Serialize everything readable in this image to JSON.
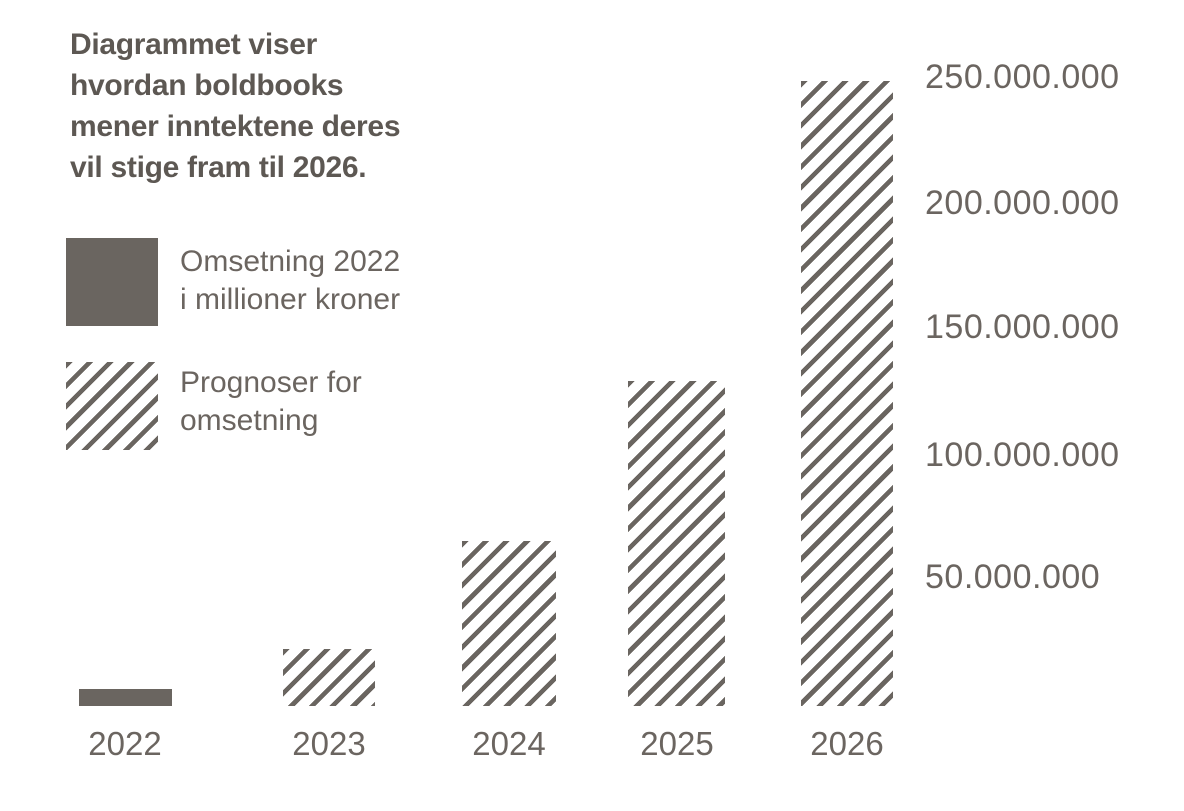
{
  "title": {
    "lines": [
      "Diagrammet viser",
      "hvordan boldbooks",
      "mener inntektene deres",
      "vil stige fram til 2026."
    ]
  },
  "legend": {
    "items": [
      {
        "swatch": "solid-square",
        "lines": [
          "Omsetning 2022",
          "i millioner kroner"
        ]
      },
      {
        "swatch": "hatched-square",
        "lines": [
          "Prognoser for",
          "omsetning"
        ]
      }
    ]
  },
  "y_axis": {
    "labels": [
      "250.000.000",
      "200.000.000",
      "150.000.000",
      "100.000.000",
      "50.000.000"
    ]
  },
  "x_axis": {
    "labels": [
      "2022",
      "2023",
      "2024",
      "2025",
      "2026"
    ]
  },
  "colors": {
    "bar": "#6a6560",
    "title_text": "#5d5853",
    "label_text": "#6b6560",
    "background": "#ffffff"
  },
  "chart_data": {
    "type": "bar",
    "title": "Diagrammet viser hvordan boldbooks mener inntektene deres vil stige fram til 2026.",
    "categories": [
      "2022",
      "2023",
      "2024",
      "2025",
      "2026"
    ],
    "series": [
      {
        "name": "Omsetning 2022 i millioner kroner",
        "style": "solid",
        "values": [
          7000000,
          null,
          null,
          null,
          null
        ]
      },
      {
        "name": "Prognoser for omsetning",
        "style": "hatched",
        "values": [
          null,
          23000000,
          66000000,
          130000000,
          250000000
        ]
      }
    ],
    "ylim": [
      0,
      260000000
    ],
    "y_ticks": [
      50000000,
      100000000,
      150000000,
      200000000,
      250000000
    ],
    "y_tick_side": "right",
    "grid": false,
    "axis_lines": "none",
    "legend_position": "upper-left",
    "hatch_direction": "forward-diagonal"
  }
}
